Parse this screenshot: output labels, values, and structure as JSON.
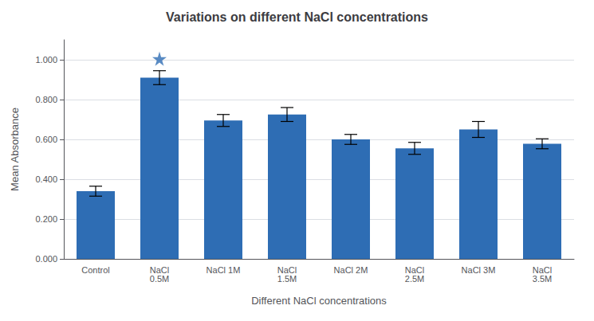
{
  "chart_data": {
    "type": "bar",
    "title": "Variations on different NaCl concentrations",
    "xlabel": "Different NaCl concentrations",
    "ylabel": "Mean Absorbance",
    "categories": [
      "Control",
      "NaCl\n0.5M",
      "NaCl 1M",
      "NaCl\n1.5M",
      "NaCl 2M",
      "NaCl\n2.5M",
      "NaCl 3M",
      "NaCl\n3.5M"
    ],
    "series": [
      {
        "type": "bar",
        "color": "#2E6DB4",
        "values": [
          0.34,
          0.91,
          0.695,
          0.725,
          0.6,
          0.555,
          0.65,
          0.578
        ],
        "errors": [
          0.025,
          0.035,
          0.03,
          0.035,
          0.025,
          0.03,
          0.04,
          0.025
        ]
      },
      {
        "type": "scatter",
        "marker": "star",
        "color": "#2E6DB4",
        "values": [
          null,
          1.005,
          null,
          null,
          null,
          null,
          null,
          null
        ]
      }
    ],
    "ylim": [
      0,
      1.1
    ],
    "yticks": [
      {
        "value": 0,
        "label": "0.000"
      },
      {
        "value": 0.2,
        "label": "0.200"
      },
      {
        "value": 0.4,
        "label": "0.400"
      },
      {
        "value": 0.6,
        "label": "0.600"
      },
      {
        "value": 0.8,
        "label": "0.800"
      },
      {
        "value": 1.0,
        "label": "1.000"
      }
    ],
    "grid": true
  }
}
